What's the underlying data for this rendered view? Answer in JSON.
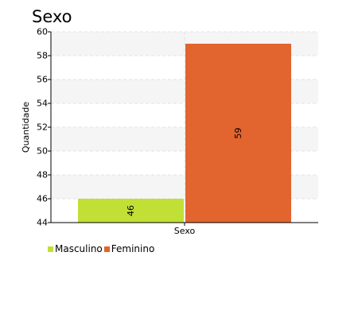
{
  "chart_data": {
    "type": "bar",
    "title": "Sexo",
    "xlabel": "Sexo",
    "ylabel": "Quantidade",
    "categories": [
      "Sexo"
    ],
    "series": [
      {
        "name": "Masculino",
        "values": [
          46
        ],
        "color": "#c0e035"
      },
      {
        "name": "Feminino",
        "values": [
          59
        ],
        "color": "#e2642e"
      }
    ],
    "ylim": [
      44,
      60
    ],
    "yticks": [
      44,
      46,
      48,
      50,
      52,
      54,
      56,
      58,
      60
    ],
    "grid": true,
    "legend": "bottom-left"
  }
}
